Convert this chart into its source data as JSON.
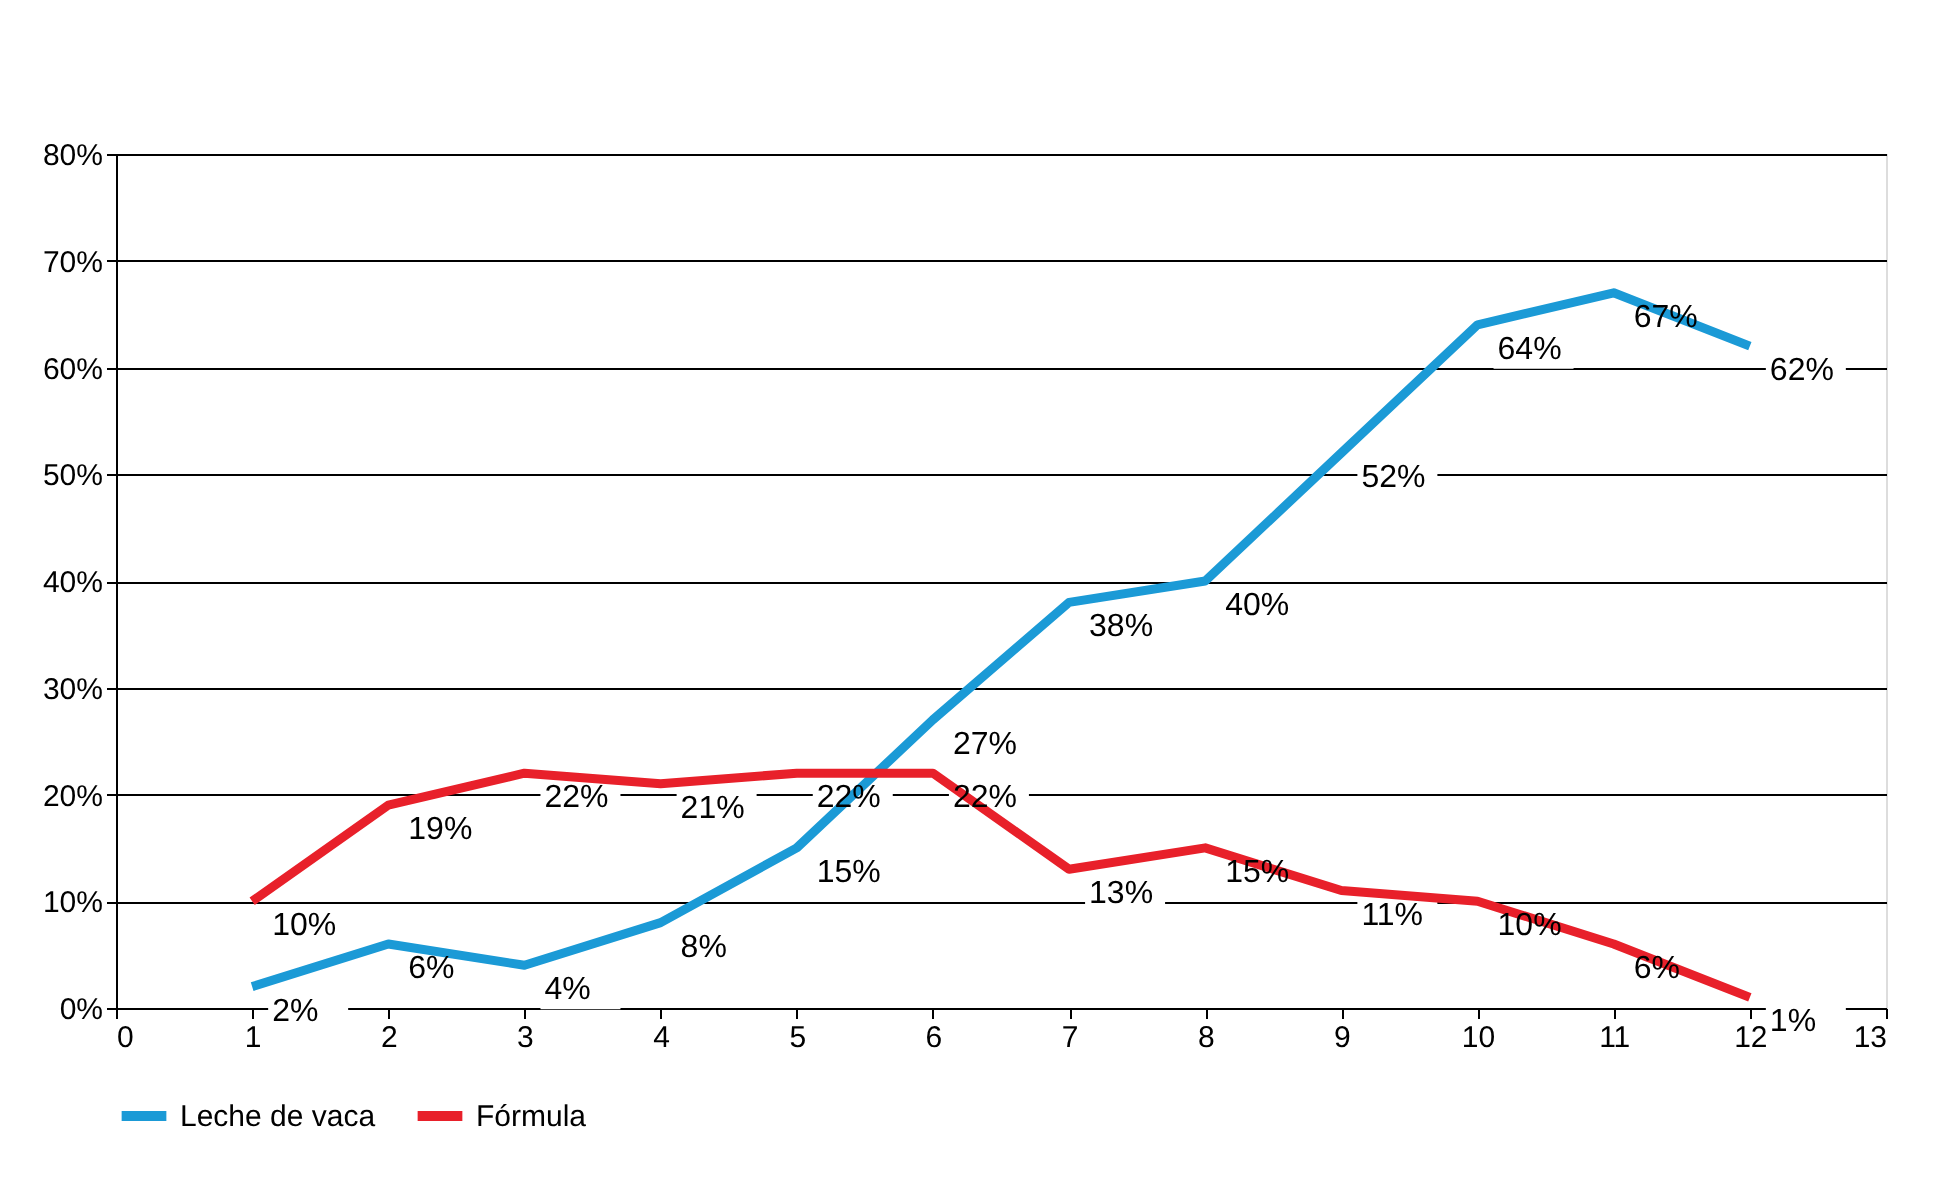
{
  "chart_data": {
    "type": "line",
    "x": [
      1,
      2,
      3,
      4,
      5,
      6,
      7,
      8,
      9,
      10,
      11,
      12
    ],
    "series": [
      {
        "name": "Leche de vaca",
        "color": "#1b9ad6",
        "values": [
          2,
          6,
          4,
          8,
          15,
          27,
          38,
          40,
          52,
          64,
          67,
          62
        ],
        "value_labels": [
          "2%",
          "6%",
          "4%",
          "8%",
          "15%",
          "27%",
          "38%",
          "40%",
          "52%",
          "64%",
          "67%",
          "62%"
        ]
      },
      {
        "name": "Fórmula",
        "color": "#e8202a",
        "values": [
          10,
          19,
          22,
          21,
          22,
          22,
          13,
          15,
          11,
          10,
          6,
          1
        ],
        "value_labels": [
          "10%",
          "19%",
          "22%",
          "21%",
          "22%",
          "22%",
          "13%",
          "15%",
          "11%",
          "10%",
          "6%",
          "1%"
        ]
      }
    ],
    "xlim": [
      0,
      13
    ],
    "xticks": [
      0,
      1,
      2,
      3,
      4,
      5,
      6,
      7,
      8,
      9,
      10,
      11,
      12,
      13
    ],
    "ylim": [
      0,
      80
    ],
    "yticks": [
      {
        "value": 0,
        "label": "0%"
      },
      {
        "value": 10,
        "label": "10%"
      },
      {
        "value": 20,
        "label": "20%"
      },
      {
        "value": 30,
        "label": "30%"
      },
      {
        "value": 40,
        "label": "40%"
      },
      {
        "value": 50,
        "label": "50%"
      },
      {
        "value": 60,
        "label": "60%"
      },
      {
        "value": 70,
        "label": "70%"
      },
      {
        "value": 80,
        "label": "80%"
      }
    ],
    "grid": "y",
    "legend": "bottom",
    "marker": "none",
    "line_style": "solid"
  }
}
